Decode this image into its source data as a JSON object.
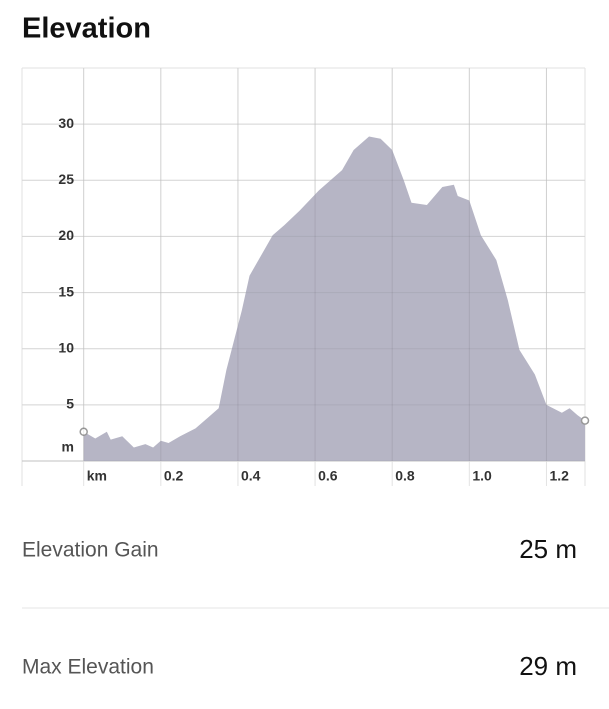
{
  "chart_data": {
    "type": "area",
    "title": "Elevation",
    "x": [
      0,
      0.03,
      0.06,
      0.07,
      0.1,
      0.13,
      0.16,
      0.18,
      0.2,
      0.22,
      0.25,
      0.29,
      0.32,
      0.35,
      0.37,
      0.41,
      0.43,
      0.46,
      0.49,
      0.52,
      0.56,
      0.61,
      0.67,
      0.7,
      0.74,
      0.77,
      0.8,
      0.83,
      0.85,
      0.89,
      0.93,
      0.96,
      0.97,
      1.0,
      1.03,
      1.07,
      1.1,
      1.13,
      1.17,
      1.2,
      1.24,
      1.26,
      1.28,
      1.3
    ],
    "values": [
      2.6,
      2.0,
      2.6,
      1.9,
      2.2,
      1.2,
      1.5,
      1.2,
      1.8,
      1.6,
      2.2,
      2.9,
      3.8,
      4.7,
      8.1,
      13.4,
      16.5,
      18.3,
      20.1,
      21,
      22.3,
      24.1,
      25.9,
      27.7,
      28.9,
      28.7,
      27.7,
      25,
      23,
      22.8,
      24.4,
      24.6,
      23.6,
      23.2,
      20.1,
      17.9,
      14.3,
      9.9,
      7.7,
      5.0,
      4.3,
      4.7,
      4.1,
      3.6
    ],
    "color": "#b6b5c5",
    "xlim": [
      -0.16,
      1.3
    ],
    "xticks": [
      {
        "value": 0,
        "label": "km"
      },
      0.2,
      0.4,
      0.6,
      0.8,
      {
        "value": 1.0,
        "label": "1.0"
      },
      1.2
    ],
    "ylim": [
      0,
      35
    ],
    "yticks": [
      {
        "value": 0,
        "label": "m"
      },
      5,
      10,
      15,
      20,
      25,
      30
    ],
    "grid": true
  },
  "stats": [
    {
      "label": "Elevation Gain",
      "value": "25 m"
    },
    {
      "label": "Max Elevation",
      "value": "29 m"
    }
  ]
}
